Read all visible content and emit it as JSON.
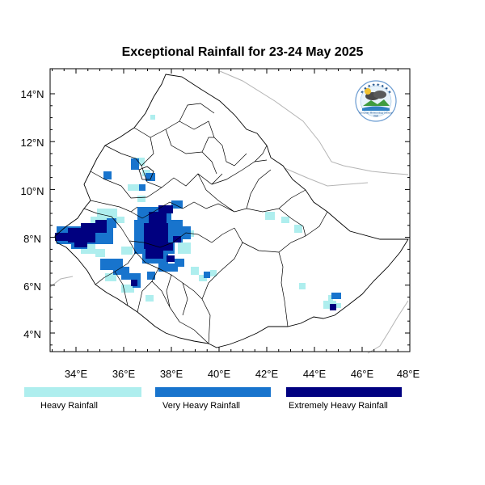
{
  "title": "Exceptional Rainfall for 23-24 May 2025",
  "axes": {
    "x_ticks": [
      "34°E",
      "36°E",
      "38°E",
      "40°E",
      "42°E",
      "44°E",
      "46°E",
      "48°E"
    ],
    "y_ticks": [
      "14°N",
      "12°N",
      "10°N",
      "8°N",
      "6°N",
      "4°N"
    ],
    "lon_range": [
      32.9,
      48.2
    ],
    "lat_range": [
      3.3,
      15.0
    ]
  },
  "legend": {
    "items": [
      {
        "label": "Heavy Rainfall",
        "color": "#aeeeee"
      },
      {
        "label": "Very Heavy Rainfall",
        "color": "#1874cd"
      },
      {
        "label": "Extremely Heavy Rainfall",
        "color": "#000080"
      }
    ]
  },
  "logo": {
    "text": "Ethiopian Meteorology Institute",
    "abbr": "EMI"
  },
  "colors": {
    "border": "#000000",
    "neighbor_border": "#b4b4b4",
    "frame": "#000000"
  }
}
